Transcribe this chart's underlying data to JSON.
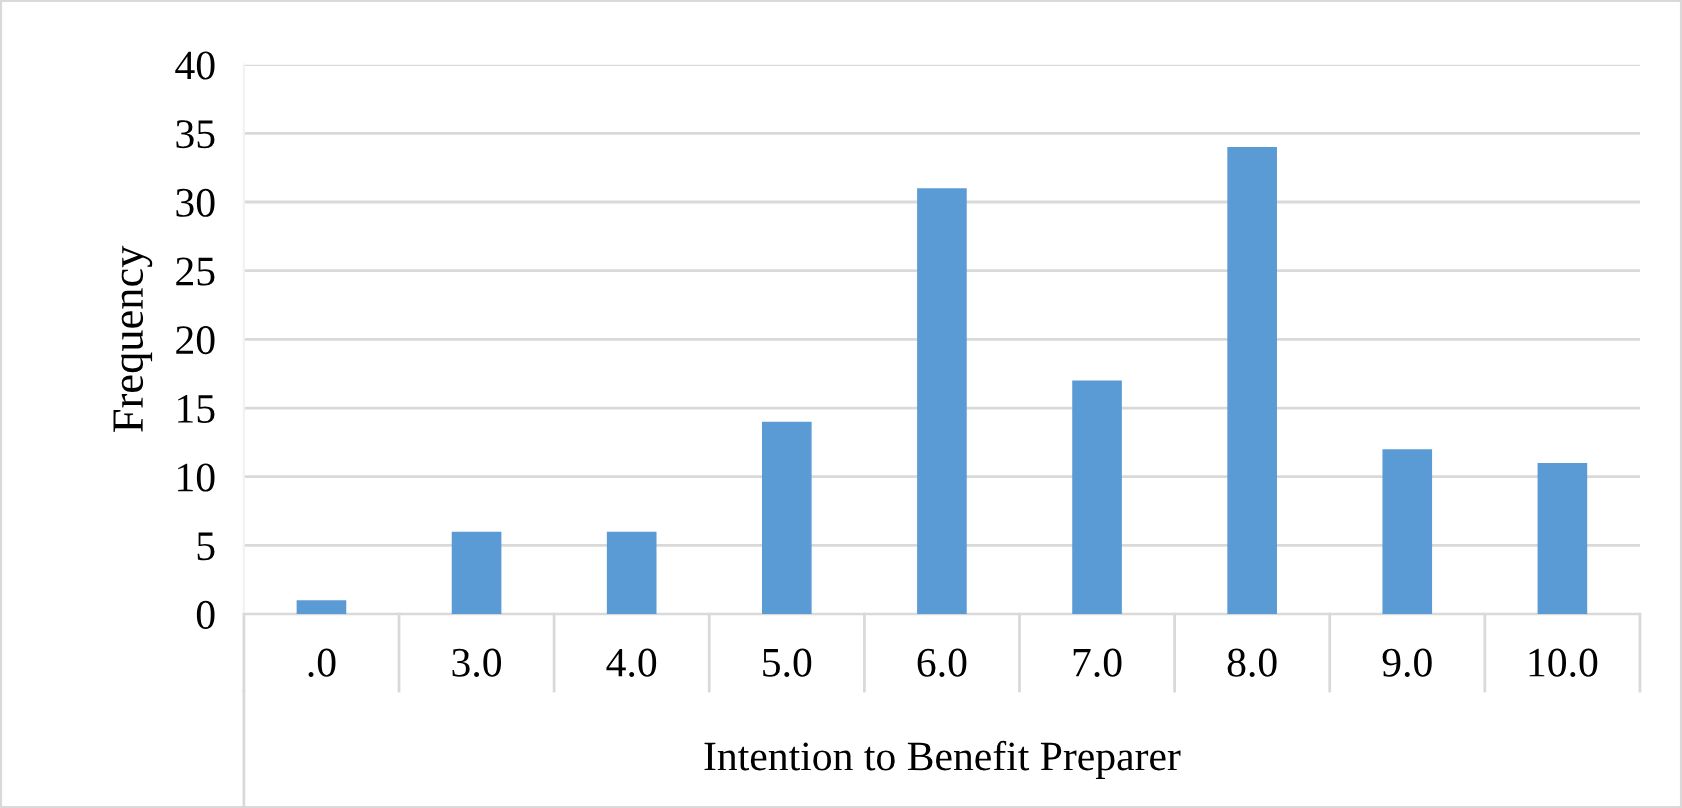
{
  "chart_data": {
    "type": "bar",
    "xlabel": "Intention to Benefit Preparer",
    "ylabel": "Frequency",
    "categories": [
      ".0",
      "3.0",
      "4.0",
      "5.0",
      "6.0",
      "7.0",
      "8.0",
      "9.0",
      "10.0"
    ],
    "values": [
      1,
      6,
      6,
      14,
      31,
      17,
      34,
      12,
      11
    ],
    "color": "#5b9bd5",
    "ylim": [
      0,
      40
    ],
    "yticks": [
      0,
      5,
      10,
      15,
      20,
      25,
      30,
      35,
      40
    ],
    "grid": "y",
    "legend": false
  }
}
